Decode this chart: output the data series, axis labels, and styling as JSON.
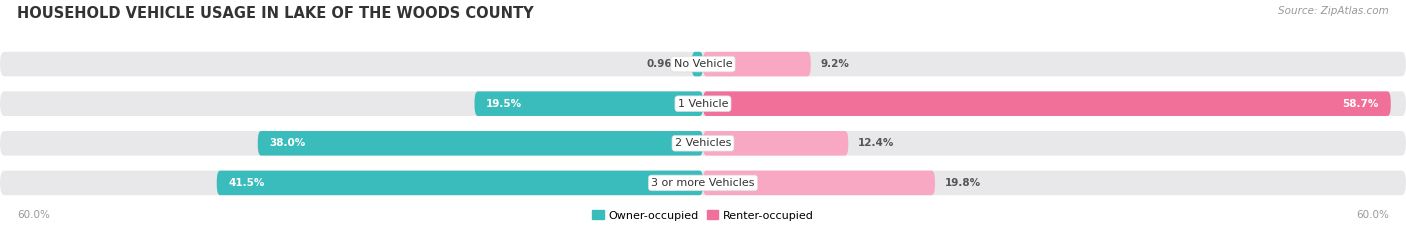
{
  "title": "HOUSEHOLD VEHICLE USAGE IN LAKE OF THE WOODS COUNTY",
  "source": "Source: ZipAtlas.com",
  "categories": [
    "No Vehicle",
    "1 Vehicle",
    "2 Vehicles",
    "3 or more Vehicles"
  ],
  "owner_values": [
    0.96,
    19.5,
    38.0,
    41.5
  ],
  "renter_values": [
    9.2,
    58.7,
    12.4,
    19.8
  ],
  "owner_color": "#3BBCBC",
  "renter_color": "#F07099",
  "renter_color_light": "#F9A8C4",
  "bar_bg_color": "#E8E8EA",
  "axis_max": 60.0,
  "legend_owner": "Owner-occupied",
  "legend_renter": "Renter-occupied",
  "x_tick_label_left": "60.0%",
  "x_tick_label_right": "60.0%",
  "title_fontsize": 10.5,
  "source_fontsize": 7.5,
  "value_fontsize": 7.5,
  "category_fontsize": 8,
  "legend_fontsize": 8,
  "background_color": "#FFFFFF",
  "bar_height": 0.62,
  "separator_color": "#FFFFFF"
}
